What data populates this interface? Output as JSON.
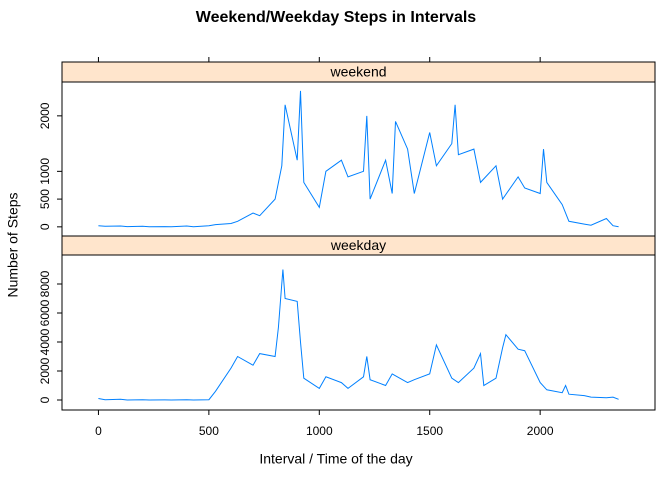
{
  "title": "Weekend/Weekday Steps in Intervals",
  "x_label": "Interval / Time of the day",
  "y_label": "Number of Steps",
  "chart_data": [
    {
      "type": "line",
      "strip": "weekend",
      "color": "#0080ff",
      "xlim": [
        -165,
        2520
      ],
      "xticks": [
        0,
        500,
        1000,
        1500,
        2000
      ],
      "ylim": [
        -165,
        2610
      ],
      "yticks": [
        0,
        500,
        1000,
        2000
      ],
      "x": [
        0,
        30,
        100,
        130,
        200,
        230,
        300,
        330,
        400,
        430,
        500,
        530,
        600,
        630,
        700,
        730,
        800,
        830,
        845,
        900,
        915,
        930,
        1000,
        1030,
        1100,
        1130,
        1200,
        1215,
        1230,
        1300,
        1330,
        1345,
        1400,
        1430,
        1500,
        1530,
        1600,
        1615,
        1630,
        1700,
        1730,
        1800,
        1830,
        1900,
        1930,
        2000,
        2015,
        2030,
        2100,
        2130,
        2200,
        2230,
        2300,
        2330,
        2355
      ],
      "values": [
        20,
        10,
        15,
        5,
        10,
        0,
        5,
        0,
        15,
        0,
        20,
        40,
        60,
        100,
        250,
        200,
        500,
        1100,
        2200,
        1200,
        2450,
        800,
        350,
        1000,
        1200,
        900,
        1000,
        2000,
        500,
        1200,
        600,
        1900,
        1400,
        600,
        1700,
        1100,
        1500,
        2200,
        1300,
        1400,
        800,
        1100,
        500,
        900,
        700,
        600,
        1400,
        800,
        400,
        100,
        50,
        30,
        150,
        20,
        0
      ]
    },
    {
      "type": "line",
      "strip": "weekday",
      "color": "#0080ff",
      "xlim": [
        -165,
        2520
      ],
      "xticks": [
        0,
        500,
        1000,
        1500,
        2000
      ],
      "ylim": [
        -690,
        10000
      ],
      "yticks": [
        0,
        2000,
        4000,
        6000,
        8000
      ],
      "x": [
        0,
        30,
        100,
        130,
        200,
        230,
        300,
        330,
        400,
        430,
        500,
        530,
        600,
        630,
        700,
        730,
        800,
        815,
        835,
        845,
        900,
        915,
        930,
        1000,
        1030,
        1100,
        1130,
        1200,
        1215,
        1230,
        1300,
        1330,
        1400,
        1430,
        1500,
        1530,
        1600,
        1630,
        1700,
        1730,
        1745,
        1800,
        1830,
        1845,
        1900,
        1930,
        2000,
        2030,
        2100,
        2115,
        2130,
        2200,
        2230,
        2300,
        2330,
        2355
      ],
      "values": [
        100,
        20,
        50,
        0,
        20,
        0,
        10,
        0,
        20,
        0,
        20,
        600,
        2200,
        3000,
        2400,
        3200,
        3000,
        5000,
        9000,
        7000,
        6800,
        4000,
        1500,
        800,
        1600,
        1200,
        800,
        1600,
        3000,
        1400,
        1000,
        1800,
        1200,
        1400,
        1800,
        3800,
        1500,
        1200,
        2200,
        3200,
        1000,
        1500,
        3600,
        4500,
        3500,
        3400,
        1200,
        700,
        500,
        1000,
        400,
        300,
        200,
        150,
        200,
        50
      ]
    }
  ]
}
